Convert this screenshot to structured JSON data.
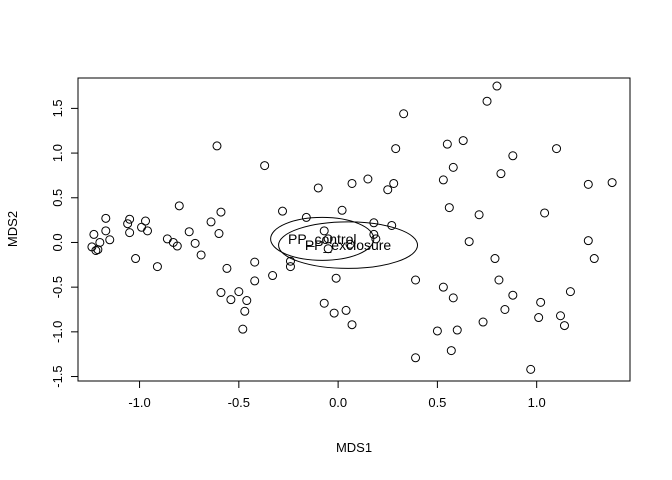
{
  "chart_data": {
    "type": "scatter",
    "title": "",
    "xlabel": "MDS1",
    "ylabel": "MDS2",
    "xlim": [
      -1.31,
      1.47
    ],
    "ylim": [
      -1.55,
      1.84
    ],
    "xticks": [
      -1.0,
      -0.5,
      0.0,
      0.5,
      1.0
    ],
    "xtick_labels": [
      "-1.0",
      "-0.5",
      "0.0",
      "0.5",
      "1.0"
    ],
    "yticks": [
      -1.5,
      -1.0,
      -0.5,
      0.0,
      0.5,
      1.0,
      1.5
    ],
    "ytick_labels": [
      "-1.5",
      "-1.0",
      "-0.5",
      "0.0",
      "0.5",
      "1.0",
      "1.5"
    ],
    "grid": false,
    "marker": "open-circle",
    "points": [
      [
        -1.23,
        0.09
      ],
      [
        -1.24,
        -0.05
      ],
      [
        -1.22,
        -0.09
      ],
      [
        -1.21,
        -0.08
      ],
      [
        -1.2,
        0.0
      ],
      [
        -1.17,
        0.27
      ],
      [
        -1.17,
        0.13
      ],
      [
        -1.15,
        0.03
      ],
      [
        -1.06,
        0.21
      ],
      [
        -1.05,
        0.26
      ],
      [
        -1.05,
        0.11
      ],
      [
        -1.02,
        -0.18
      ],
      [
        -0.99,
        0.17
      ],
      [
        -0.97,
        0.24
      ],
      [
        -0.96,
        0.13
      ],
      [
        -0.91,
        -0.27
      ],
      [
        -0.86,
        0.04
      ],
      [
        -0.83,
        0.0
      ],
      [
        -0.81,
        -0.04
      ],
      [
        -0.8,
        0.41
      ],
      [
        -0.75,
        0.12
      ],
      [
        -0.72,
        -0.01
      ],
      [
        -0.69,
        -0.14
      ],
      [
        -0.64,
        0.23
      ],
      [
        -0.61,
        1.08
      ],
      [
        -0.6,
        0.1
      ],
      [
        -0.59,
        0.34
      ],
      [
        -0.59,
        -0.56
      ],
      [
        -0.56,
        -0.29
      ],
      [
        -0.54,
        -0.64
      ],
      [
        -0.5,
        -0.55
      ],
      [
        -0.48,
        -0.97
      ],
      [
        -0.47,
        -0.77
      ],
      [
        -0.46,
        -0.65
      ],
      [
        -0.42,
        -0.22
      ],
      [
        -0.42,
        -0.43
      ],
      [
        -0.37,
        0.86
      ],
      [
        -0.33,
        -0.37
      ],
      [
        -0.28,
        0.35
      ],
      [
        -0.24,
        -0.21
      ],
      [
        -0.24,
        -0.27
      ],
      [
        -0.16,
        0.28
      ],
      [
        -0.1,
        0.61
      ],
      [
        -0.07,
        0.13
      ],
      [
        -0.07,
        -0.68
      ],
      [
        -0.05,
        0.04
      ],
      [
        -0.05,
        -0.07
      ],
      [
        -0.02,
        -0.79
      ],
      [
        -0.01,
        -0.4
      ],
      [
        0.02,
        0.36
      ],
      [
        0.04,
        -0.76
      ],
      [
        0.06,
        -0.02
      ],
      [
        0.07,
        0.66
      ],
      [
        0.07,
        -0.92
      ],
      [
        0.15,
        0.71
      ],
      [
        0.18,
        0.22
      ],
      [
        0.18,
        0.09
      ],
      [
        0.19,
        0.04
      ],
      [
        0.25,
        0.59
      ],
      [
        0.27,
        0.19
      ],
      [
        0.28,
        0.66
      ],
      [
        0.29,
        1.05
      ],
      [
        0.33,
        1.44
      ],
      [
        0.39,
        -0.42
      ],
      [
        0.39,
        -1.29
      ],
      [
        0.5,
        -0.99
      ],
      [
        0.53,
        -0.5
      ],
      [
        0.53,
        0.7
      ],
      [
        0.55,
        1.1
      ],
      [
        0.56,
        0.39
      ],
      [
        0.57,
        -1.21
      ],
      [
        0.58,
        0.84
      ],
      [
        0.58,
        -0.62
      ],
      [
        0.6,
        -0.98
      ],
      [
        0.63,
        1.14
      ],
      [
        0.66,
        0.01
      ],
      [
        0.71,
        0.31
      ],
      [
        0.73,
        -0.89
      ],
      [
        0.75,
        1.58
      ],
      [
        0.79,
        -0.18
      ],
      [
        0.8,
        1.75
      ],
      [
        0.81,
        -0.42
      ],
      [
        0.82,
        0.77
      ],
      [
        0.84,
        -0.75
      ],
      [
        0.88,
        0.97
      ],
      [
        0.88,
        -0.59
      ],
      [
        0.97,
        -1.42
      ],
      [
        1.01,
        -0.84
      ],
      [
        1.02,
        -0.67
      ],
      [
        1.04,
        0.33
      ],
      [
        1.1,
        1.05
      ],
      [
        1.12,
        -0.82
      ],
      [
        1.14,
        -0.93
      ],
      [
        1.17,
        -0.55
      ],
      [
        1.26,
        0.65
      ],
      [
        1.26,
        0.02
      ],
      [
        1.29,
        -0.18
      ],
      [
        1.38,
        0.67
      ]
    ],
    "ellipses": [
      {
        "label": "PP_control",
        "center": [
          -0.08,
          0.04
        ],
        "radius_x": 0.26,
        "radius_y": 0.24
      },
      {
        "label": "PP_exclosure",
        "center": [
          0.05,
          -0.03
        ],
        "radius_x": 0.35,
        "radius_y": 0.26
      }
    ]
  }
}
